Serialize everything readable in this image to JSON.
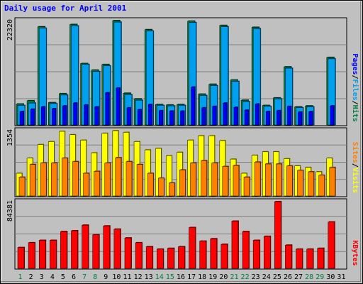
{
  "chart_data": {
    "type": "bar",
    "title": "Daily usage for April 2001",
    "categories": [
      "1",
      "2",
      "3",
      "4",
      "5",
      "6",
      "7",
      "8",
      "9",
      "10",
      "11",
      "12",
      "13",
      "14",
      "15",
      "16",
      "17",
      "18",
      "19",
      "20",
      "21",
      "22",
      "23",
      "24",
      "25",
      "26",
      "27",
      "28",
      "29",
      "30",
      "31"
    ],
    "weekend_days": [
      "1",
      "7",
      "8",
      "14",
      "15",
      "21",
      "22",
      "28",
      "29"
    ],
    "panels": [
      {
        "id": "hits-files-pages",
        "ymax_label": "22320",
        "ylim": [
          0,
          22320
        ],
        "right_label": [
          "Pages",
          "/",
          "Files",
          "/",
          "Hits"
        ],
        "series": [
          {
            "name": "Hits",
            "color": "#008040",
            "values": [
              4600,
              5300,
              21000,
              4900,
              6800,
              21500,
              13200,
              11800,
              13000,
              22320,
              6900,
              5700,
              20400,
              4500,
              4400,
              4500,
              22200,
              6700,
              8800,
              21300,
              9700,
              5400,
              20900,
              4300,
              5900,
              12500,
              4000,
              4200,
              20,
              14500,
              0
            ]
          },
          {
            "name": "Files",
            "color": "#00a0f0",
            "values": [
              4300,
              4800,
              20700,
              4700,
              6500,
              21200,
              13000,
              11500,
              12700,
              22000,
              6600,
              5400,
              20100,
              4300,
              4200,
              4300,
              21900,
              6400,
              8500,
              21000,
              9400,
              5100,
              20600,
              4100,
              5700,
              12200,
              3800,
              4000,
              0,
              14200,
              0
            ]
          },
          {
            "name": "Pages",
            "color": "#0000ff",
            "values": [
              3000,
              3500,
              4000,
              3600,
              4200,
              4800,
              4400,
              4000,
              7000,
              8000,
              3800,
              3400,
              4500,
              3200,
              3100,
              3100,
              8200,
              3800,
              4100,
              4800,
              3900,
              3300,
              4600,
              3000,
              3200,
              4100,
              2900,
              3000,
              0,
              4200,
              0
            ]
          }
        ]
      },
      {
        "id": "visits-sites",
        "ymax_label": "1354",
        "ylim": [
          0,
          1354
        ],
        "right_label": [
          "Sites",
          "/",
          "Visits"
        ],
        "series": [
          {
            "name": "Visits",
            "color": "#ffff00",
            "values": [
              480,
              790,
              1070,
              1130,
              1340,
              1270,
              1160,
              900,
              1300,
              1354,
              1320,
              1130,
              960,
              990,
              840,
              910,
              1160,
              1250,
              1250,
              1150,
              770,
              480,
              850,
              920,
              920,
              780,
              630,
              600,
              510,
              790,
              0
            ]
          },
          {
            "name": "Sites",
            "color": "#ff8000",
            "values": [
              400,
              660,
              690,
              690,
              790,
              720,
              480,
              520,
              690,
              800,
              720,
              660,
              480,
              380,
              280,
              550,
              690,
              740,
              690,
              620,
              640,
              400,
              710,
              670,
              670,
              630,
              540,
              510,
              440,
              600,
              0
            ]
          }
        ]
      },
      {
        "id": "kbytes",
        "ymax_label": "84381",
        "ylim": [
          0,
          84381
        ],
        "right_label": [
          "KBytes"
        ],
        "series": [
          {
            "name": "KBytes",
            "color": "#ff0000",
            "values": [
              27000,
              33000,
              36000,
              36000,
              47000,
              48000,
              55000,
              43000,
              54000,
              50000,
              39000,
              33000,
              28000,
              25000,
              26000,
              28000,
              52000,
              35000,
              38000,
              31000,
              60000,
              47000,
              36000,
              41000,
              84381,
              30000,
              25000,
              25000,
              26000,
              59000,
              0
            ]
          }
        ]
      }
    ]
  }
}
